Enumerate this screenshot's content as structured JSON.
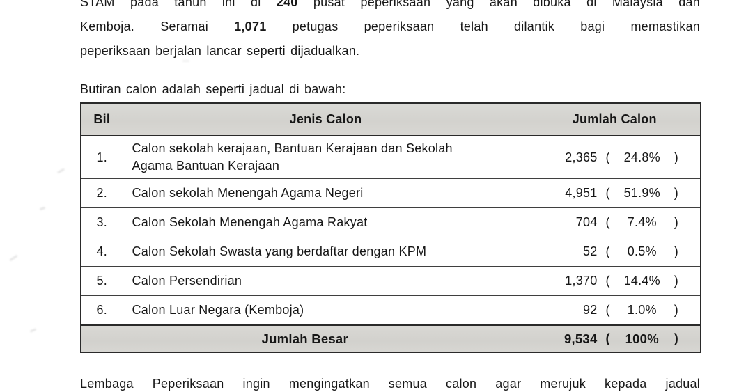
{
  "intro": {
    "line1_pre": "STAM pada tahun ini di",
    "line1_bold": "240",
    "line1_post": "pusat peperiksaan yang akan dibuka di Malaysia dan",
    "line2_pre": "Kemboja. Seramai",
    "line2_bold": "1,071",
    "line2_post": "petugas peperiksaan telah dilantik bagi memastikan",
    "line3": "peperiksaan berjalan lancar seperti dijadualkan."
  },
  "table_intro": "Butiran calon adalah seperti jadual di bawah:",
  "table": {
    "header": {
      "bil": "Bil",
      "jenis": "Jenis Calon",
      "jumlah": "Jumlah Calon"
    },
    "pct_open": "(",
    "pct_close": ")",
    "rows": [
      {
        "bil": "1.",
        "jenis_line1": "Calon sekolah kerajaan, Bantuan Kerajaan dan Sekolah",
        "jenis_line2": "Agama Bantuan Kerajaan",
        "jumlah": "2,365",
        "pct": "24.8%"
      },
      {
        "bil": "2.",
        "jenis": "Calon sekolah Menengah Agama Negeri",
        "jumlah": "4,951",
        "pct": "51.9%"
      },
      {
        "bil": "3.",
        "jenis": "Calon Sekolah Menengah Agama Rakyat",
        "jumlah": "704",
        "pct": "7.4%"
      },
      {
        "bil": "4.",
        "jenis": "Calon Sekolah Swasta yang berdaftar dengan KPM",
        "jumlah": "52",
        "pct": "0.5%"
      },
      {
        "bil": "5.",
        "jenis": "Calon Persendirian",
        "jumlah": "1,370",
        "pct": "14.4%"
      },
      {
        "bil": "6.",
        "jenis": "Calon Luar Negara (Kemboja)",
        "jumlah": "92",
        "pct": "1.0%"
      }
    ],
    "total": {
      "label": "Jumlah Besar",
      "jumlah": "9,534",
      "pct": "100%"
    },
    "colors": {
      "header_bg": "#d6d5d1",
      "border": "#2a2a2a",
      "text": "#161616"
    }
  },
  "footer_paragraph": "Lembaga Peperiksaan ingin mengingatkan semua calon agar merujuk kepada jadual"
}
